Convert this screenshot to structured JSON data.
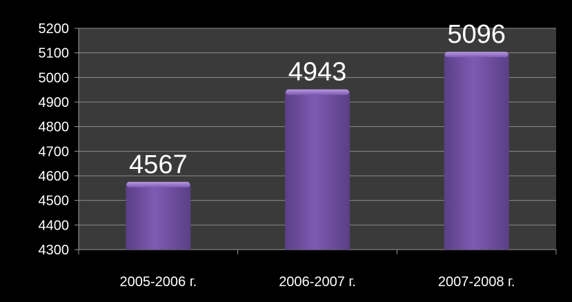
{
  "chart_data": {
    "type": "bar",
    "title": "",
    "xlabel": "",
    "ylabel": "",
    "categories": [
      "2005-2006 г.",
      "2006-2007 г.",
      "2007-2008 г."
    ],
    "values": [
      4567,
      4943,
      5096
    ],
    "data_labels": [
      "4567",
      "4943",
      "5096"
    ],
    "ylim": [
      4300,
      5200
    ],
    "yticks": [
      4300,
      4400,
      4500,
      4600,
      4700,
      4800,
      4900,
      5000,
      5100,
      5200
    ],
    "ytick_labels": [
      "4300",
      "4400",
      "4500",
      "4600",
      "4700",
      "4800",
      "4900",
      "5000",
      "5100",
      "5200"
    ],
    "grid": true,
    "legend": "none",
    "colors": {
      "page_background": "#000000",
      "plot_background": "#3a3a3a",
      "bar": "#7e5bb3",
      "bar_highlight": "#b89ae0",
      "bar_shadow": "#5a3f86",
      "gridline": "#8c8c8c",
      "axis": "#9a9a9a",
      "text": "#ffffff"
    }
  }
}
